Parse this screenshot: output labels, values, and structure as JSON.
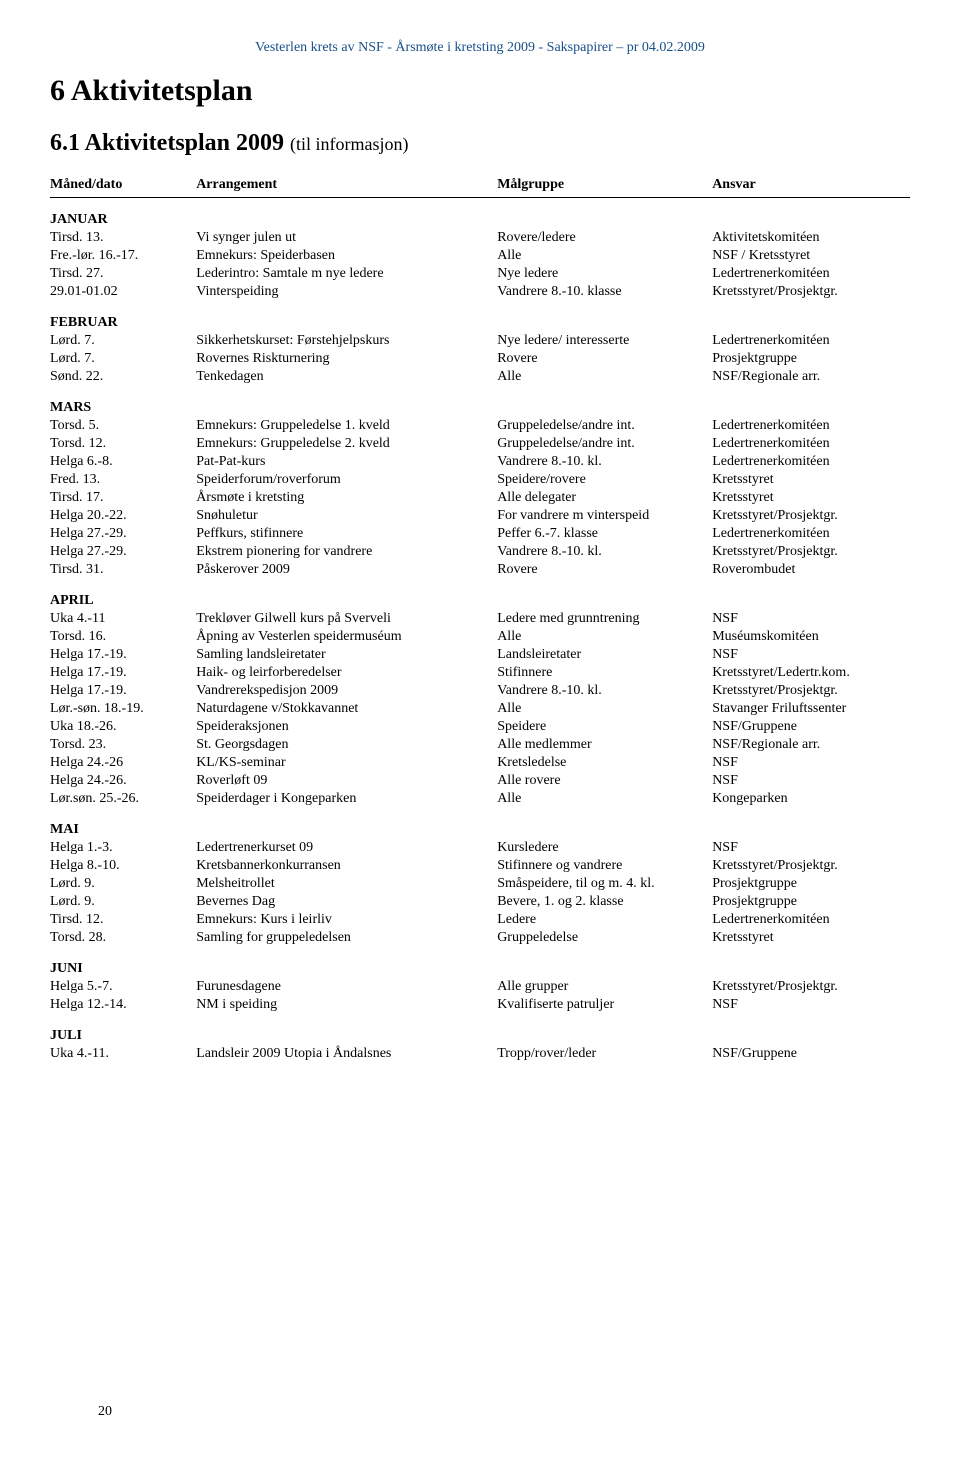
{
  "running_header": "Vesterlen krets av NSF - Årsmøte i kretsting 2009 - Sakspapirer – pr 04.02.2009",
  "h1": "6   Aktivitetsplan",
  "h2_main": "6.1 Aktivitetsplan 2009",
  "h2_sub": "(til informasjon)",
  "headers": {
    "dato": "Måned/dato",
    "arr": "Arrangement",
    "grp": "Målgruppe",
    "ansv": "Ansvar"
  },
  "page_num": "20",
  "sections": [
    {
      "month": "JANUAR",
      "rows": [
        {
          "d": "Tirsd. 13.",
          "a": "Vi synger julen ut",
          "g": "Rovere/ledere",
          "n": "Aktivitetskomitéen"
        },
        {
          "d": "Fre.-lør. 16.-17.",
          "a": "Emnekurs: Speiderbasen",
          "g": "Alle",
          "n": "NSF / Kretsstyret"
        },
        {
          "d": "Tirsd. 27.",
          "a": "Lederintro: Samtale m nye ledere",
          "g": "Nye ledere",
          "n": "Ledertrenerkomitéen"
        },
        {
          "d": " 29.01-01.02",
          "a": "Vinterspeiding",
          "g": "Vandrere 8.-10. klasse",
          "n": "Kretsstyret/Prosjektgr."
        }
      ]
    },
    {
      "month": "FEBRUAR",
      "rows": [
        {
          "d": "Lørd. 7.",
          "a": "Sikkerhetskurset: Førstehjelpskurs",
          "g": "Nye ledere/ interesserte",
          "n": "Ledertrenerkomitéen"
        },
        {
          "d": "Lørd. 7.",
          "a": "Rovernes Riskturnering",
          "g": "Rovere",
          "n": "Prosjektgruppe"
        },
        {
          "d": "Sønd. 22.",
          "a": "Tenkedagen",
          "g": "Alle",
          "n": "NSF/Regionale arr."
        }
      ]
    },
    {
      "month": "MARS",
      "rows": [
        {
          "d": "Torsd. 5.",
          "a": "Emnekurs: Gruppeledelse 1. kveld",
          "g": "Gruppeledelse/andre int.",
          "n": "Ledertrenerkomitéen"
        },
        {
          "d": "Torsd. 12.",
          "a": "Emnekurs: Gruppeledelse 2. kveld",
          "g": "Gruppeledelse/andre int.",
          "n": "Ledertrenerkomitéen"
        },
        {
          "d": "Helga 6.-8.",
          "a": "Pat-Pat-kurs",
          "g": "Vandrere 8.-10. kl.",
          "n": "Ledertrenerkomitéen"
        },
        {
          "d": "Fred. 13.",
          "a": "Speiderforum/roverforum",
          "g": "Speidere/rovere",
          "n": "Kretsstyret"
        },
        {
          "d": "Tirsd. 17.",
          "a": "Årsmøte i kretsting",
          "g": "Alle delegater",
          "n": "Kretsstyret"
        },
        {
          "d": "Helga 20.-22.",
          "a": "Snøhuletur",
          "g": "For vandrere m vinterspeid",
          "n": "Kretsstyret/Prosjektgr."
        },
        {
          "d": "Helga 27.-29.",
          "a": "Peffkurs, stifinnere",
          "g": "Peffer 6.-7. klasse",
          "n": "Ledertrenerkomitéen"
        },
        {
          "d": " Helga 27.-29.",
          "a": "Ekstrem pionering for vandrere",
          "g": "Vandrere 8.-10. kl.",
          "n": "Kretsstyret/Prosjektgr."
        },
        {
          "d": "Tirsd. 31.",
          "a": "Påskerover 2009",
          "g": "Rovere",
          "n": "Roverombudet"
        }
      ]
    },
    {
      "month": "APRIL",
      "rows": [
        {
          "d": "Uka 4.-11",
          "a": "Trekløver Gilwell kurs på Sverveli",
          "g": "Ledere med grunntrening",
          "n": "NSF"
        },
        {
          "d": "Torsd. 16.",
          "a": "Åpning av Vesterlen speidermuséum",
          "g": "Alle",
          "n": "Muséumskomitéen"
        },
        {
          "d": "Helga 17.-19.",
          "a": "Samling landsleiretater",
          "g": "Landsleiretater",
          "n": "NSF"
        },
        {
          "d": "Helga 17.-19.",
          "a": "Haik- og leirforberedelser",
          "g": "Stifinnere",
          "n": "Kretsstyret/Ledertr.kom."
        },
        {
          "d": "Helga 17.-19.",
          "a": "Vandrerekspedisjon 2009",
          "g": "Vandrere 8.-10. kl.",
          "n": "Kretsstyret/Prosjektgr."
        },
        {
          "d": "Lør.-søn. 18.-19.",
          "a": "Naturdagene v/Stokkavannet",
          "g": "Alle",
          "n": "Stavanger Friluftssenter"
        },
        {
          "d": "Uka 18.-26.",
          "a": "Speideraksjonen",
          "g": "Speidere",
          "n": "NSF/Gruppene"
        },
        {
          "d": "Torsd. 23.",
          "a": "St. Georgsdagen",
          "g": "Alle medlemmer",
          "n": "NSF/Regionale arr."
        },
        {
          "d": "Helga 24.-26",
          "a": "KL/KS-seminar",
          "g": "Kretsledelse",
          "n": "NSF"
        },
        {
          "d": "Helga 24.-26.",
          "a": "Roverløft 09",
          "g": "Alle rovere",
          "n": "NSF"
        },
        {
          "d": "Lør.søn. 25.-26.",
          "a": "Speiderdager i Kongeparken",
          "g": "Alle",
          "n": "Kongeparken"
        }
      ]
    },
    {
      "month": "MAI",
      "rows": [
        {
          "d": "Helga 1.-3.",
          "a": "Ledertrenerkurset 09",
          "g": "Kursledere",
          "n": "NSF"
        },
        {
          "d": "Helga 8.-10.",
          "a": "Kretsbannerkonkurransen",
          "g": "Stifinnere og vandrere",
          "n": "Kretsstyret/Prosjektgr."
        },
        {
          "d": "Lørd. 9.",
          "a": "Melsheitrollet",
          "g": "Småspeidere, til og m. 4. kl.",
          "n": "Prosjektgruppe"
        },
        {
          "d": "Lørd. 9.",
          "a": "Bevernes Dag",
          "g": "Bevere, 1. og 2. klasse",
          "n": "Prosjektgruppe"
        },
        {
          "d": "Tirsd. 12.",
          "a": "Emnekurs: Kurs i leirliv",
          "g": "Ledere",
          "n": "Ledertrenerkomitéen"
        },
        {
          "d": "Torsd. 28.",
          "a": "Samling for gruppeledelsen",
          "g": "Gruppeledelse",
          "n": "Kretsstyret"
        }
      ]
    },
    {
      "month": "JUNI",
      "rows": [
        {
          "d": "Helga 5.-7.",
          "a": "Furunesdagene",
          "g": "Alle grupper",
          "n": "Kretsstyret/Prosjektgr."
        },
        {
          "d": "Helga 12.-14.",
          "a": "NM i speiding",
          "g": "Kvalifiserte patruljer",
          "n": "NSF"
        }
      ]
    },
    {
      "month": "JULI",
      "rows": [
        {
          "d": "Uka 4.-11.",
          "a": "Landsleir 2009 Utopia i Åndalsnes",
          "g": "Tropp/rover/leder",
          "n": "NSF/Gruppene"
        }
      ]
    }
  ]
}
